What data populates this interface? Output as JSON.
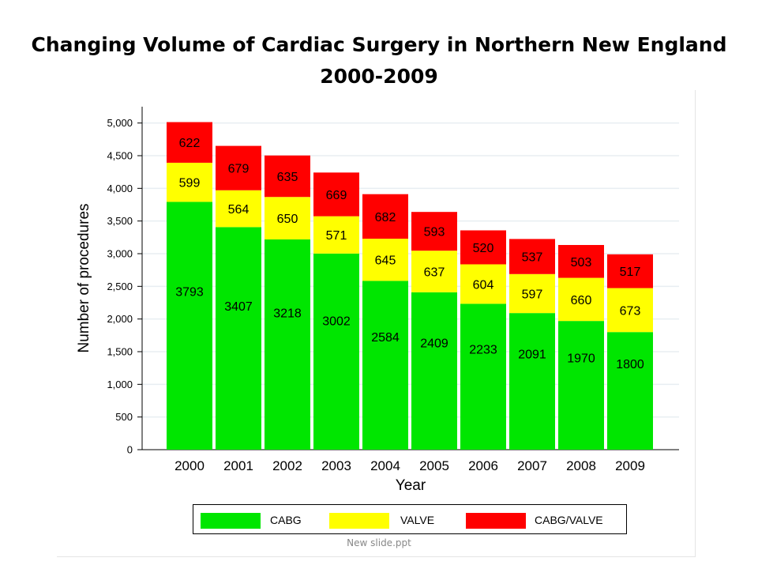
{
  "title_line_1": "Changing Volume of Cardiac Surgery in Northern New England",
  "title_line_2": "2000-2009",
  "footer": "New slide.ppt",
  "colors": {
    "CABG": "#00e600",
    "VALVE": "#ffff00",
    "CABG/VALVE": "#ff0000",
    "grid": "#e8eef2"
  },
  "legend": [
    {
      "label": "CABG",
      "color": "#00e600"
    },
    {
      "label": "VALVE",
      "color": "#ffff00"
    },
    {
      "label": "CABG/VALVE",
      "color": "#ff0000"
    }
  ],
  "chart_data": {
    "type": "bar",
    "stacked": true,
    "xlabel": "Year",
    "ylabel": "Number of procedures",
    "ylim": [
      0,
      5250
    ],
    "yticks": [
      0,
      500,
      1000,
      1500,
      2000,
      2500,
      3000,
      3500,
      4000,
      4500,
      5000
    ],
    "ytick_labels": [
      "0",
      "500",
      "1,000",
      "1,500",
      "2,000",
      "2,500",
      "3,000",
      "3,500",
      "4,000",
      "4,500",
      "5,000"
    ],
    "categories": [
      "2000",
      "2001",
      "2002",
      "2003",
      "2004",
      "2005",
      "2006",
      "2007",
      "2008",
      "2009"
    ],
    "series": [
      {
        "name": "CABG",
        "values": [
          3793,
          3407,
          3218,
          3002,
          2584,
          2409,
          2233,
          2091,
          1970,
          1800
        ]
      },
      {
        "name": "VALVE",
        "values": [
          599,
          564,
          650,
          571,
          645,
          637,
          604,
          597,
          660,
          673
        ]
      },
      {
        "name": "CABG/VALVE",
        "values": [
          622,
          679,
          635,
          669,
          682,
          593,
          520,
          537,
          503,
          517
        ]
      }
    ],
    "grid": true,
    "legend_position": "bottom"
  }
}
